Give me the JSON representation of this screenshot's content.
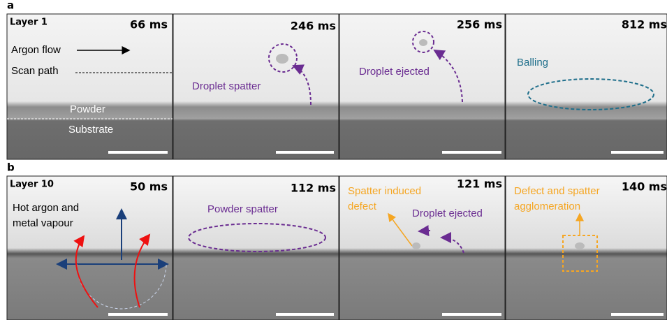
{
  "panels": [
    {
      "label": "a",
      "frames": [
        {
          "layer": "Layer 1",
          "time": "66 ms",
          "annotations": [
            "Argon flow",
            "Scan path",
            "Powder",
            "Substrate"
          ]
        },
        {
          "time": "246 ms",
          "annotations": [
            "Droplet spatter"
          ]
        },
        {
          "time": "256 ms",
          "annotations": [
            "Droplet ejected"
          ]
        },
        {
          "time": "812 ms",
          "annotations": [
            "Balling"
          ]
        }
      ]
    },
    {
      "label": "b",
      "frames": [
        {
          "layer": "Layer 10",
          "time": "50 ms",
          "annotations": [
            "Hot argon and",
            "metal vapour"
          ]
        },
        {
          "time": "112 ms",
          "annotations": [
            "Powder spatter"
          ]
        },
        {
          "time": "121 ms",
          "annotations": [
            "Spatter induced",
            "defect",
            "Droplet ejected"
          ]
        },
        {
          "time": "140 ms",
          "annotations": [
            "Defect and spatter",
            "agglomeration"
          ]
        }
      ]
    }
  ]
}
